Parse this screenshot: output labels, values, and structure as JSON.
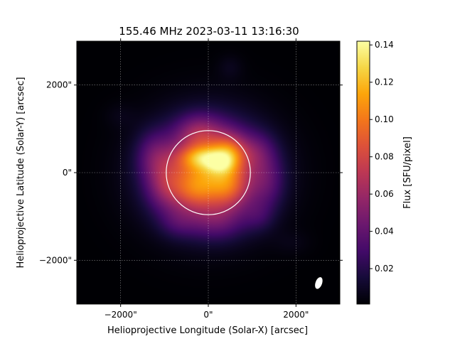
{
  "chart_data": {
    "type": "heatmap",
    "title": "155.46 MHz 2023-03-11 13:16:30",
    "xlabel": "Helioprojective Longitude (Solar-X) [arcsec]",
    "ylabel": "Helioprojective Latitude (Solar-Y) [arcsec]",
    "xlim": [
      -3000,
      3000
    ],
    "ylim": [
      -3000,
      3000
    ],
    "x_ticks": [
      {
        "value": -2000,
        "label": "−2000\""
      },
      {
        "value": 0,
        "label": "0\""
      },
      {
        "value": 2000,
        "label": "2000\""
      }
    ],
    "y_ticks": [
      {
        "value": 2000,
        "label": "2000\""
      },
      {
        "value": 0,
        "label": "0\""
      },
      {
        "value": -2000,
        "label": "−2000\""
      }
    ],
    "grid": true,
    "colormap": "inferno",
    "colorbar": {
      "label": "Flux [SFU/pixel]",
      "range": [
        0.001,
        0.142
      ],
      "ticks": [
        {
          "value": 0.02,
          "label": "0.02"
        },
        {
          "value": 0.04,
          "label": "0.04"
        },
        {
          "value": 0.06,
          "label": "0.06"
        },
        {
          "value": 0.08,
          "label": "0.08"
        },
        {
          "value": 0.1,
          "label": "0.10"
        },
        {
          "value": 0.12,
          "label": "0.12"
        },
        {
          "value": 0.14,
          "label": "0.14"
        }
      ]
    },
    "solar_limb": {
      "center": [
        0,
        0
      ],
      "radius_arcsec": 960
    },
    "beam": {
      "center": [
        2520,
        -2520
      ],
      "semi_major_arcsec": 140,
      "semi_minor_arcsec": 75,
      "angle_deg": 20
    },
    "emission_sources": [
      {
        "x": 0,
        "y": 0,
        "sigma_x": 900,
        "sigma_y": 820,
        "amp": 0.06
      },
      {
        "x": 0,
        "y": 0,
        "sigma_x": 620,
        "sigma_y": 600,
        "amp": 0.045
      },
      {
        "x": -100,
        "y": 350,
        "sigma_x": 380,
        "sigma_y": 180,
        "amp": 0.04
      },
      {
        "x": 480,
        "y": 450,
        "sigma_x": 260,
        "sigma_y": 300,
        "amp": 0.04
      },
      {
        "x": 250,
        "y": 200,
        "sigma_x": 200,
        "sigma_y": 150,
        "amp": 0.02
      },
      {
        "x": 500,
        "y": -350,
        "sigma_x": 300,
        "sigma_y": 320,
        "amp": 0.025
      },
      {
        "x": -350,
        "y": -450,
        "sigma_x": 320,
        "sigma_y": 280,
        "amp": 0.02
      },
      {
        "x": -200,
        "y": 950,
        "sigma_x": 350,
        "sigma_y": 280,
        "amp": 0.025
      },
      {
        "x": -1250,
        "y": 400,
        "sigma_x": 280,
        "sigma_y": 380,
        "amp": 0.022
      },
      {
        "x": -1000,
        "y": -300,
        "sigma_x": 300,
        "sigma_y": 400,
        "amp": 0.025
      },
      {
        "x": 1350,
        "y": -200,
        "sigma_x": 280,
        "sigma_y": 450,
        "amp": 0.02
      },
      {
        "x": 1100,
        "y": 500,
        "sigma_x": 300,
        "sigma_y": 300,
        "amp": 0.018
      },
      {
        "x": 200,
        "y": -1150,
        "sigma_x": 450,
        "sigma_y": 300,
        "amp": 0.018
      },
      {
        "x": -700,
        "y": -1150,
        "sigma_x": 300,
        "sigma_y": 250,
        "amp": 0.014
      },
      {
        "x": 1150,
        "y": -1000,
        "sigma_x": 250,
        "sigma_y": 250,
        "amp": 0.012
      },
      {
        "x": 500,
        "y": 2400,
        "sigma_x": 200,
        "sigma_y": 200,
        "amp": 0.006
      },
      {
        "x": -2000,
        "y": 1300,
        "sigma_x": 250,
        "sigma_y": 200,
        "amp": 0.004
      },
      {
        "x": 1900,
        "y": -1600,
        "sigma_x": 300,
        "sigma_y": 200,
        "amp": 0.004
      }
    ]
  },
  "colors": {
    "limb": "#ffffff",
    "grid": "#ffffff",
    "beam": "#ffffff"
  }
}
